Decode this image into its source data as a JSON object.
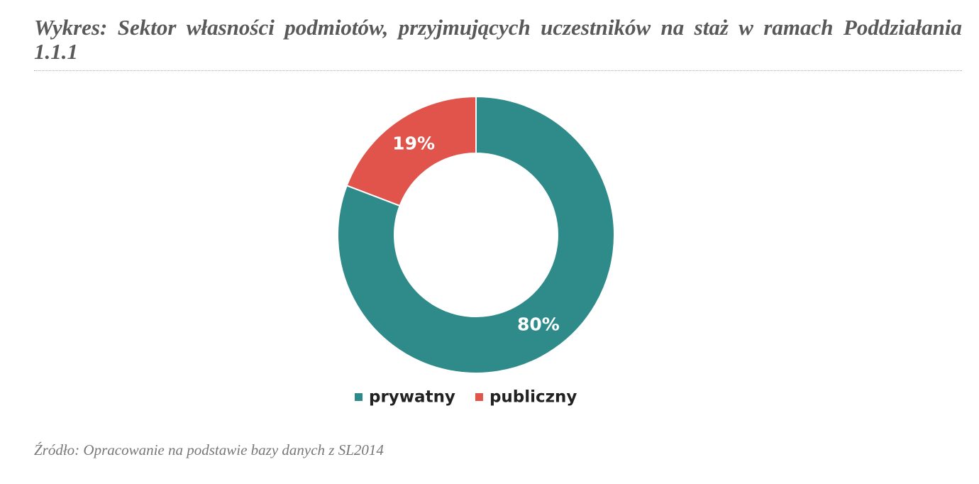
{
  "chart_data": {
    "type": "pie",
    "title": "Wykres: Sektor własności podmiotów, przyjmujących uczestników na staż w ramach Poddziałania 1.1.1",
    "categories": [
      "prywatny",
      "publiczny"
    ],
    "values": [
      80,
      19
    ],
    "value_labels": [
      "80%",
      "19%"
    ],
    "colors": [
      "#2e8b8a",
      "#e0544b"
    ],
    "source": "Źródło: Opracowanie na podstawie bazy danych z SL2014"
  }
}
